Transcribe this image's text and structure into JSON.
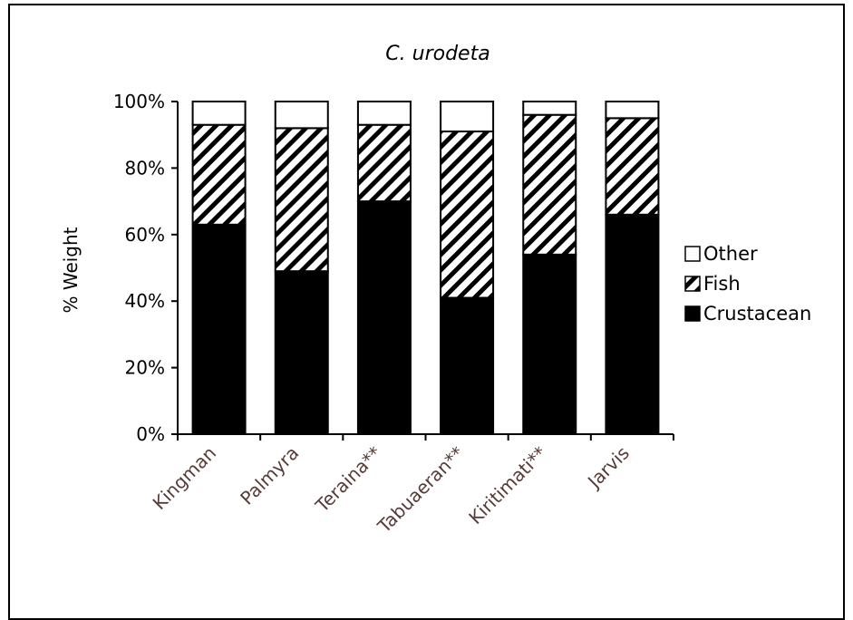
{
  "chart_data": {
    "type": "bar",
    "stacked": true,
    "title": "C. urodeta",
    "ylabel": "% Weight",
    "xlabel": "",
    "ylim": [
      0,
      100
    ],
    "yticks": [
      "0%",
      "20%",
      "40%",
      "60%",
      "80%",
      "100%"
    ],
    "categories": [
      "Kingman",
      "Palmyra",
      "Teraina**",
      "Tabuaeran**",
      "Kiritimati**",
      "Jarvis"
    ],
    "series": [
      {
        "name": "Crustacean",
        "values": [
          63,
          49,
          70,
          41,
          54,
          66
        ],
        "fill": "solid",
        "color": "#000000"
      },
      {
        "name": "Fish",
        "values": [
          30,
          43,
          23,
          50,
          42,
          29
        ],
        "fill": "hatch",
        "color": "#000000"
      },
      {
        "name": "Other",
        "values": [
          7,
          8,
          7,
          9,
          4,
          5
        ],
        "fill": "empty",
        "color": "#ffffff"
      }
    ],
    "legend": {
      "placement": "right",
      "entries": [
        "Other",
        "Fish",
        "Crustacean"
      ]
    },
    "grid": false
  }
}
